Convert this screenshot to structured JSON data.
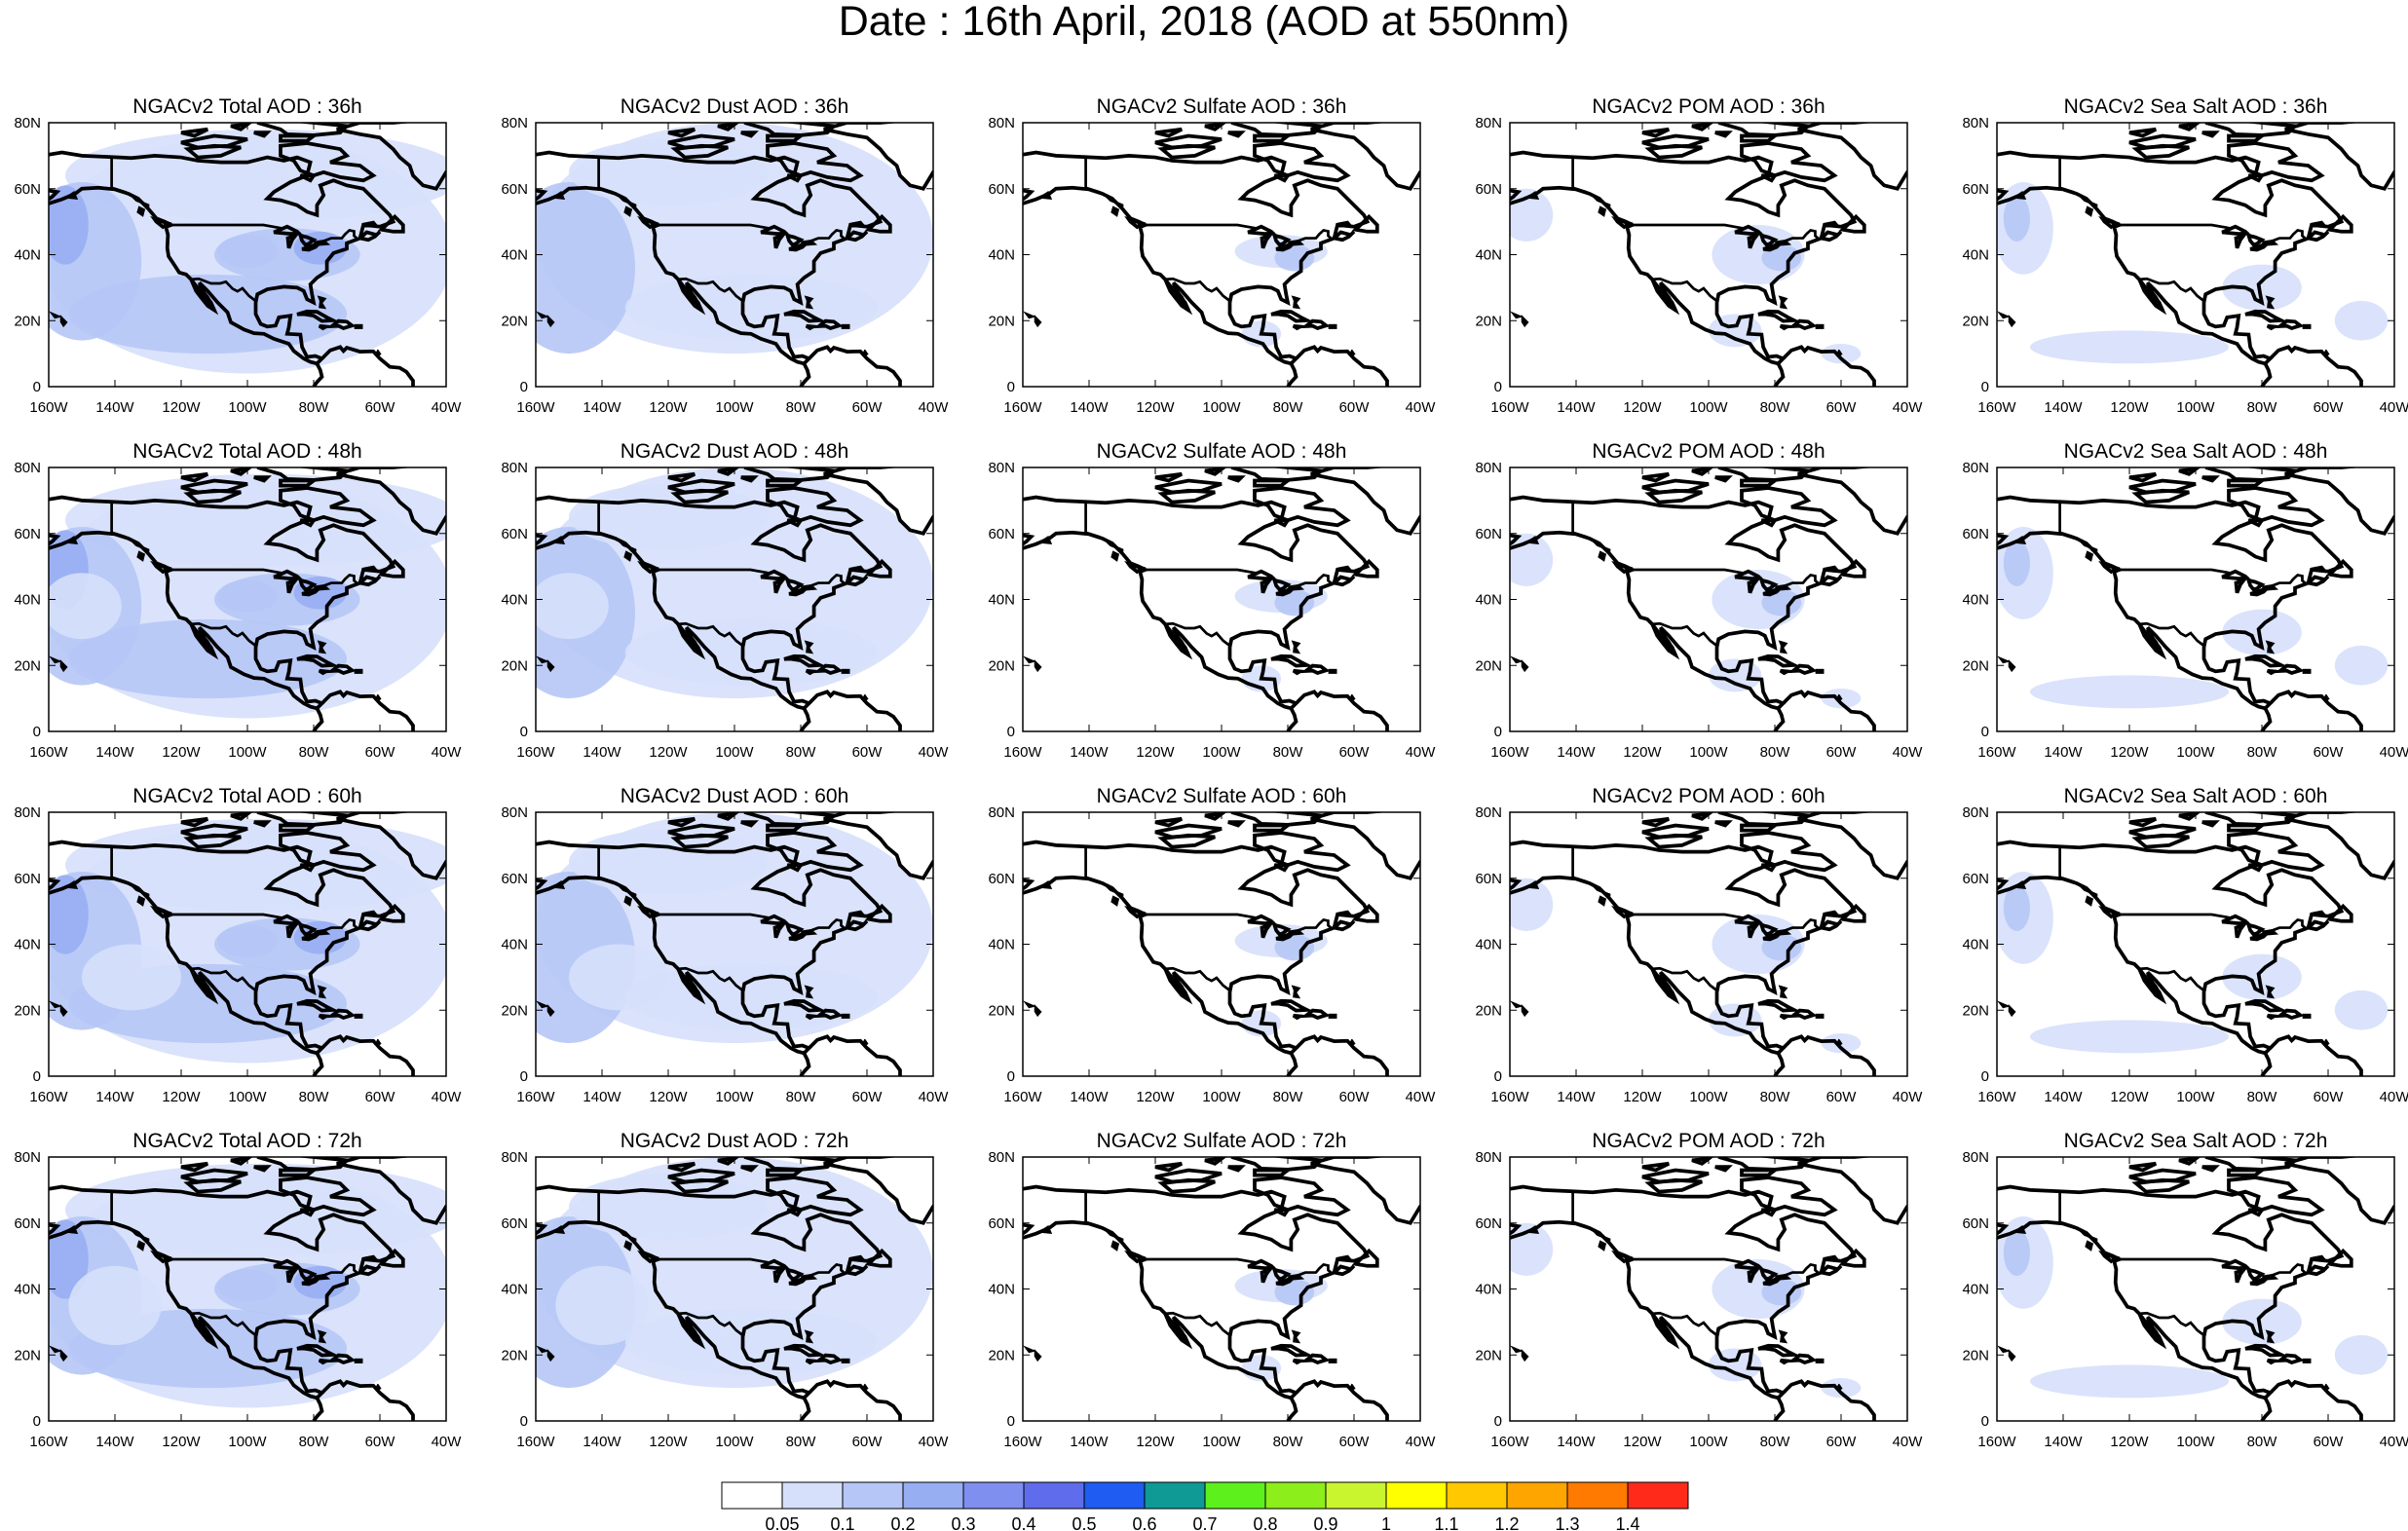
{
  "title": "Date : 16th April, 2018 (AOD at 550nm)",
  "rows": [
    "36h",
    "48h",
    "60h",
    "72h"
  ],
  "columns": [
    {
      "key": "total",
      "titles": [
        "NGACv2 Total AOD : 36h",
        "NGACv2 Total AOD : 48h",
        "NGACv2 Total AOD : 60h",
        "NGACv2 Total AOD : 72h"
      ]
    },
    {
      "key": "dust",
      "titles": [
        "NGACv2 Dust AOD : 36h",
        "NGACv2 Dust AOD : 48h",
        "NGACv2 Dust AOD : 60h",
        "NGACv2 Dust AOD : 72h"
      ]
    },
    {
      "key": "sulfate",
      "titles": [
        "NGACv2 Sulfate AOD : 36h",
        "NGACv2 Sulfate AOD : 48h",
        "NGACv2 Sulfate AOD : 60h",
        "NGACv2 Sulfate AOD : 72h"
      ]
    },
    {
      "key": "pom",
      "titles": [
        "NGACv2 POM AOD : 36h",
        "NGACv2 POM AOD : 48h",
        "NGACv2 POM AOD : 60h",
        "NGACv2 POM AOD : 72h"
      ]
    },
    {
      "key": "seasalt",
      "titles": [
        "NGACv2 Sea Salt AOD : 36h",
        "NGACv2 Sea Salt AOD : 48h",
        "NGACv2 Sea Salt AOD : 60h",
        "NGACv2 Sea Salt  AOD : 72h"
      ]
    }
  ],
  "lon_ticks": [
    "160W",
    "140W",
    "120W",
    "100W",
    "80W",
    "60W",
    "40W"
  ],
  "lat_ticks": [
    "80N",
    "60N",
    "40N",
    "20N",
    "0"
  ],
  "lon_range": [
    -160,
    -40
  ],
  "lat_range": [
    0,
    80
  ],
  "colorbar": {
    "labels": [
      "0.05",
      "0.1",
      "0.2",
      "0.3",
      "0.4",
      "0.5",
      "0.6",
      "0.7",
      "0.8",
      "0.9",
      "1",
      "1.1",
      "1.2",
      "1.3",
      "1.4"
    ],
    "colors": [
      "#ffffff",
      "#d6e0fb",
      "#b6c6f6",
      "#98aef3",
      "#7f8ff0",
      "#5f6ceb",
      "#1e5cf2",
      "#0f9a96",
      "#5df01d",
      "#8cee1a",
      "#c9f52e",
      "#ffff00",
      "#ffc800",
      "#ffa500",
      "#ff7a00",
      "#ff2a1a"
    ]
  }
}
